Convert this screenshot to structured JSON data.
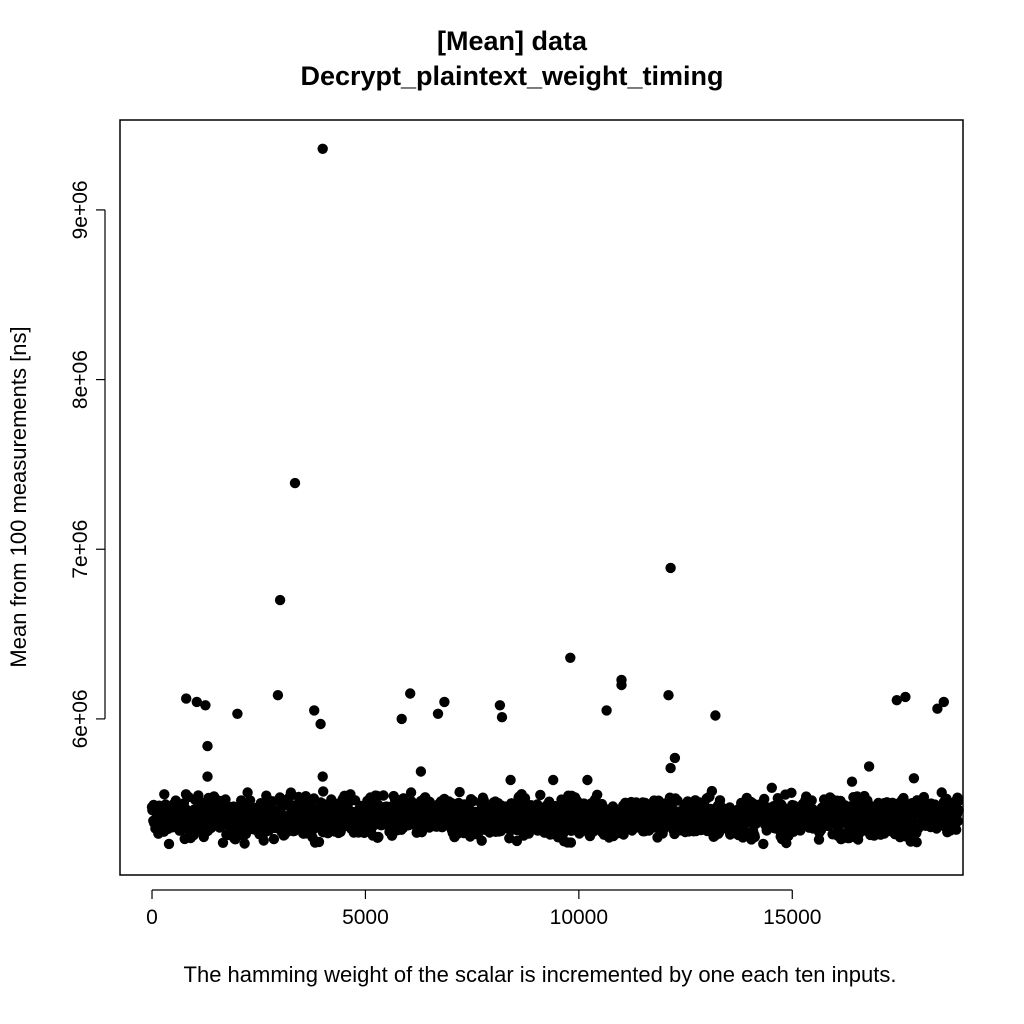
{
  "chart_data": {
    "type": "scatter",
    "title_line1": "[Mean] data",
    "title_line2": "Decrypt_plaintext_weight_timing",
    "xlabel": "The hamming weight of the scalar is incremented by one each ten inputs.",
    "ylabel": "Mean from 100 measurements [ns]",
    "xlim": [
      -750,
      19000
    ],
    "ylim": [
      5080000,
      9530000
    ],
    "x_ticks": [
      0,
      5000,
      10000,
      15000
    ],
    "x_tick_labels": [
      "0",
      "5000",
      "10000",
      "15000"
    ],
    "y_ticks": [
      6000000,
      7000000,
      8000000,
      9000000
    ],
    "y_tick_labels": [
      "6e+06",
      "7e+06",
      "8e+06",
      "9e+06"
    ],
    "grid": false,
    "point_color": "#000000",
    "bulk_band": {
      "x_range": [
        0,
        18900
      ],
      "y_min": 5230000,
      "y_max": 5640000,
      "y_center": 5420000
    },
    "points": [
      {
        "x": 4000,
        "y": 9360000
      },
      {
        "x": 3350,
        "y": 7390000
      },
      {
        "x": 12150,
        "y": 6890000
      },
      {
        "x": 3000,
        "y": 6700000
      },
      {
        "x": 9800,
        "y": 6360000
      },
      {
        "x": 11000,
        "y": 6230000
      },
      {
        "x": 11000,
        "y": 6200000
      },
      {
        "x": 800,
        "y": 6120000
      },
      {
        "x": 1050,
        "y": 6100000
      },
      {
        "x": 1250,
        "y": 6080000
      },
      {
        "x": 2000,
        "y": 6030000
      },
      {
        "x": 2950,
        "y": 6140000
      },
      {
        "x": 3800,
        "y": 6050000
      },
      {
        "x": 3950,
        "y": 5970000
      },
      {
        "x": 5850,
        "y": 6000000
      },
      {
        "x": 6050,
        "y": 6150000
      },
      {
        "x": 6700,
        "y": 6030000
      },
      {
        "x": 6850,
        "y": 6100000
      },
      {
        "x": 8150,
        "y": 6080000
      },
      {
        "x": 8200,
        "y": 6010000
      },
      {
        "x": 10650,
        "y": 6050000
      },
      {
        "x": 12100,
        "y": 6140000
      },
      {
        "x": 13200,
        "y": 6020000
      },
      {
        "x": 17450,
        "y": 6110000
      },
      {
        "x": 17650,
        "y": 6130000
      },
      {
        "x": 18400,
        "y": 6060000
      },
      {
        "x": 18550,
        "y": 6100000
      },
      {
        "x": 1300,
        "y": 5840000
      },
      {
        "x": 12250,
        "y": 5770000
      },
      {
        "x": 12150,
        "y": 5710000
      },
      {
        "x": 6300,
        "y": 5690000
      },
      {
        "x": 16800,
        "y": 5720000
      },
      {
        "x": 1300,
        "y": 5660000
      },
      {
        "x": 4000,
        "y": 5660000
      },
      {
        "x": 8400,
        "y": 5640000
      },
      {
        "x": 17850,
        "y": 5650000
      },
      {
        "x": 9400,
        "y": 5640000
      },
      {
        "x": 10200,
        "y": 5640000
      },
      {
        "x": 16400,
        "y": 5630000
      }
    ]
  }
}
